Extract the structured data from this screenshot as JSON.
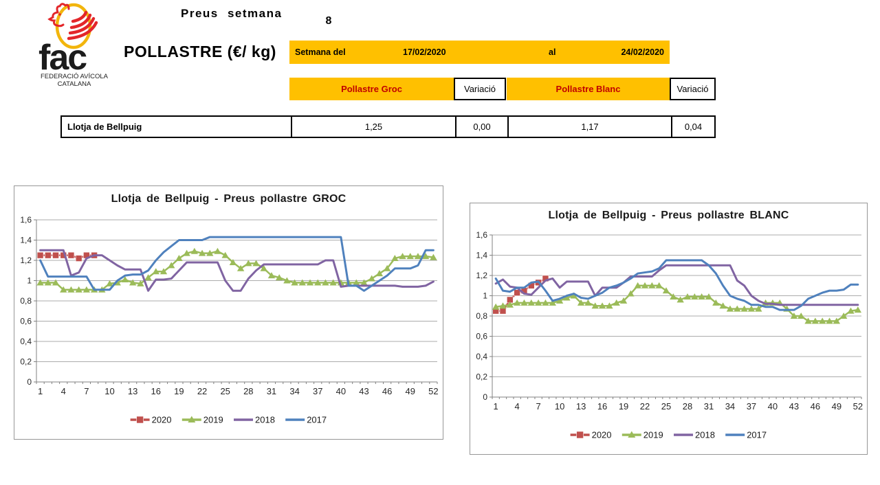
{
  "logo": {
    "brand": "fac",
    "org_line1": "FEDERACIÓ AVÍCOLA",
    "org_line2": "CATALANA"
  },
  "header": {
    "report_title": "Preus setmana",
    "week_number": "8",
    "product_title": "POLLASTRE (€/ kg)",
    "week_band": {
      "label": "Setmana del",
      "from_date": "17/02/2020",
      "al": "al",
      "to_date": "24/02/2020"
    },
    "columns": {
      "groc": "Pollastre Groc",
      "variacio1": "Variació",
      "blanc": "Pollastre Blanc",
      "variacio2": "Variació"
    }
  },
  "table": {
    "row_label": "Llotja de Bellpuig",
    "groc_price": "1,25",
    "groc_variation": "0,00",
    "blanc_price": "1,17",
    "blanc_variation": "0,04"
  },
  "colors": {
    "band_yellow": "#FFC000",
    "header_red": "#C00000",
    "series_2020": "#C0504D",
    "series_2019": "#9BBB59",
    "series_2018": "#8064A2",
    "series_2017": "#4F81BD",
    "gridline": "#ABABAB",
    "axis": "#808080"
  },
  "chart_data": [
    {
      "type": "line",
      "title": "Llotja de Bellpuig - Preus pollastre GROC",
      "weeks": 52,
      "x_ticks": [
        1,
        4,
        7,
        10,
        13,
        16,
        19,
        22,
        25,
        28,
        31,
        34,
        37,
        40,
        43,
        46,
        49,
        52
      ],
      "y_ticks": [
        "0",
        "0,2",
        "0,4",
        "0,6",
        "0,8",
        "1",
        "1,2",
        "1,4",
        "1,6"
      ],
      "ylim": [
        0,
        1.6
      ],
      "ytick_step": 0.2,
      "grid": true,
      "legend_position": "bottom",
      "series": [
        {
          "name": "2020",
          "color": "#C0504D",
          "marker": "square",
          "values": [
            1.25,
            1.25,
            1.25,
            1.25,
            1.25,
            1.22,
            1.25,
            1.25
          ]
        },
        {
          "name": "2019",
          "color": "#9BBB59",
          "marker": "triangle",
          "values": [
            0.98,
            0.98,
            0.98,
            0.91,
            0.91,
            0.91,
            0.91,
            0.91,
            0.91,
            0.97,
            0.98,
            1.01,
            0.98,
            0.97,
            1.03,
            1.09,
            1.09,
            1.15,
            1.22,
            1.27,
            1.29,
            1.27,
            1.27,
            1.29,
            1.25,
            1.18,
            1.12,
            1.17,
            1.17,
            1.12,
            1.05,
            1.03,
            1.0,
            0.98,
            0.98,
            0.98,
            0.98,
            0.98,
            0.98,
            0.98,
            0.98,
            0.98,
            0.98,
            1.02,
            1.07,
            1.12,
            1.22,
            1.24,
            1.24,
            1.24,
            1.24,
            1.23
          ]
        },
        {
          "name": "2018",
          "color": "#8064A2",
          "marker": "none",
          "values": [
            1.3,
            1.3,
            1.3,
            1.3,
            1.05,
            1.08,
            1.22,
            1.25,
            1.25,
            1.2,
            1.15,
            1.11,
            1.11,
            1.11,
            0.9,
            1.01,
            1.01,
            1.02,
            1.1,
            1.18,
            1.18,
            1.18,
            1.18,
            1.18,
            1.0,
            0.9,
            0.9,
            1.02,
            1.1,
            1.16,
            1.16,
            1.16,
            1.16,
            1.16,
            1.16,
            1.16,
            1.16,
            1.2,
            1.2,
            0.94,
            0.95,
            0.95,
            0.95,
            0.95,
            0.95,
            0.95,
            0.95,
            0.94,
            0.94,
            0.94,
            0.95,
            0.99
          ]
        },
        {
          "name": "2017",
          "color": "#4F81BD",
          "marker": "none",
          "values": [
            1.2,
            1.04,
            1.04,
            1.04,
            1.04,
            1.04,
            1.04,
            0.91,
            0.91,
            0.91,
            1.0,
            1.05,
            1.06,
            1.06,
            1.1,
            1.2,
            1.28,
            1.34,
            1.4,
            1.4,
            1.4,
            1.4,
            1.43,
            1.43,
            1.43,
            1.43,
            1.43,
            1.43,
            1.43,
            1.43,
            1.43,
            1.43,
            1.43,
            1.43,
            1.43,
            1.43,
            1.43,
            1.43,
            1.43,
            1.43,
            0.95,
            0.95,
            0.9,
            0.95,
            1.0,
            1.05,
            1.12,
            1.12,
            1.12,
            1.15,
            1.3,
            1.3
          ]
        }
      ]
    },
    {
      "type": "line",
      "title": "Llotja de Bellpuig - Preus pollastre BLANC",
      "weeks": 52,
      "x_ticks": [
        1,
        4,
        7,
        10,
        13,
        16,
        19,
        22,
        25,
        28,
        31,
        34,
        37,
        40,
        43,
        46,
        49,
        52
      ],
      "y_ticks": [
        "0",
        "0,2",
        "0,4",
        "0,6",
        "0,8",
        "1",
        "1,2",
        "1,4",
        "1,6"
      ],
      "ylim": [
        0,
        1.6
      ],
      "ytick_step": 0.2,
      "grid": true,
      "legend_position": "bottom",
      "series": [
        {
          "name": "2020",
          "color": "#C0504D",
          "marker": "square",
          "values": [
            0.85,
            0.85,
            0.96,
            1.03,
            1.05,
            1.1,
            1.13,
            1.17
          ]
        },
        {
          "name": "2019",
          "color": "#9BBB59",
          "marker": "triangle",
          "values": [
            0.89,
            0.9,
            0.91,
            0.93,
            0.93,
            0.93,
            0.93,
            0.93,
            0.93,
            0.95,
            0.98,
            1.0,
            0.93,
            0.93,
            0.9,
            0.9,
            0.9,
            0.93,
            0.95,
            1.02,
            1.1,
            1.1,
            1.1,
            1.1,
            1.05,
            0.99,
            0.96,
            0.99,
            0.99,
            0.99,
            0.99,
            0.93,
            0.9,
            0.87,
            0.87,
            0.87,
            0.87,
            0.87,
            0.93,
            0.93,
            0.93,
            0.87,
            0.8,
            0.8,
            0.75,
            0.75,
            0.75,
            0.75,
            0.75,
            0.8,
            0.85,
            0.86
          ]
        },
        {
          "name": "2018",
          "color": "#8064A2",
          "marker": "none",
          "values": [
            1.12,
            1.16,
            1.09,
            1.08,
            1.02,
            1.01,
            1.08,
            1.15,
            1.17,
            1.08,
            1.14,
            1.14,
            1.14,
            1.14,
            1.0,
            1.08,
            1.08,
            1.08,
            1.13,
            1.19,
            1.19,
            1.19,
            1.19,
            1.25,
            1.3,
            1.3,
            1.3,
            1.3,
            1.3,
            1.3,
            1.3,
            1.3,
            1.3,
            1.3,
            1.15,
            1.1,
            1.0,
            0.95,
            0.92,
            0.92,
            0.91,
            0.91,
            0.91,
            0.91,
            0.91,
            0.91,
            0.91,
            0.91,
            0.91,
            0.91,
            0.91,
            0.91
          ]
        },
        {
          "name": "2017",
          "color": "#4F81BD",
          "marker": "none",
          "values": [
            1.17,
            1.05,
            1.04,
            1.08,
            1.08,
            1.13,
            1.14,
            1.05,
            0.95,
            0.97,
            1.0,
            1.02,
            0.98,
            0.97,
            1.0,
            1.03,
            1.08,
            1.1,
            1.13,
            1.17,
            1.22,
            1.23,
            1.24,
            1.27,
            1.35,
            1.35,
            1.35,
            1.35,
            1.35,
            1.35,
            1.3,
            1.22,
            1.1,
            1.0,
            0.97,
            0.95,
            0.91,
            0.91,
            0.89,
            0.89,
            0.86,
            0.86,
            0.86,
            0.9,
            0.97,
            1.0,
            1.03,
            1.05,
            1.05,
            1.06,
            1.11,
            1.11
          ]
        }
      ]
    }
  ]
}
